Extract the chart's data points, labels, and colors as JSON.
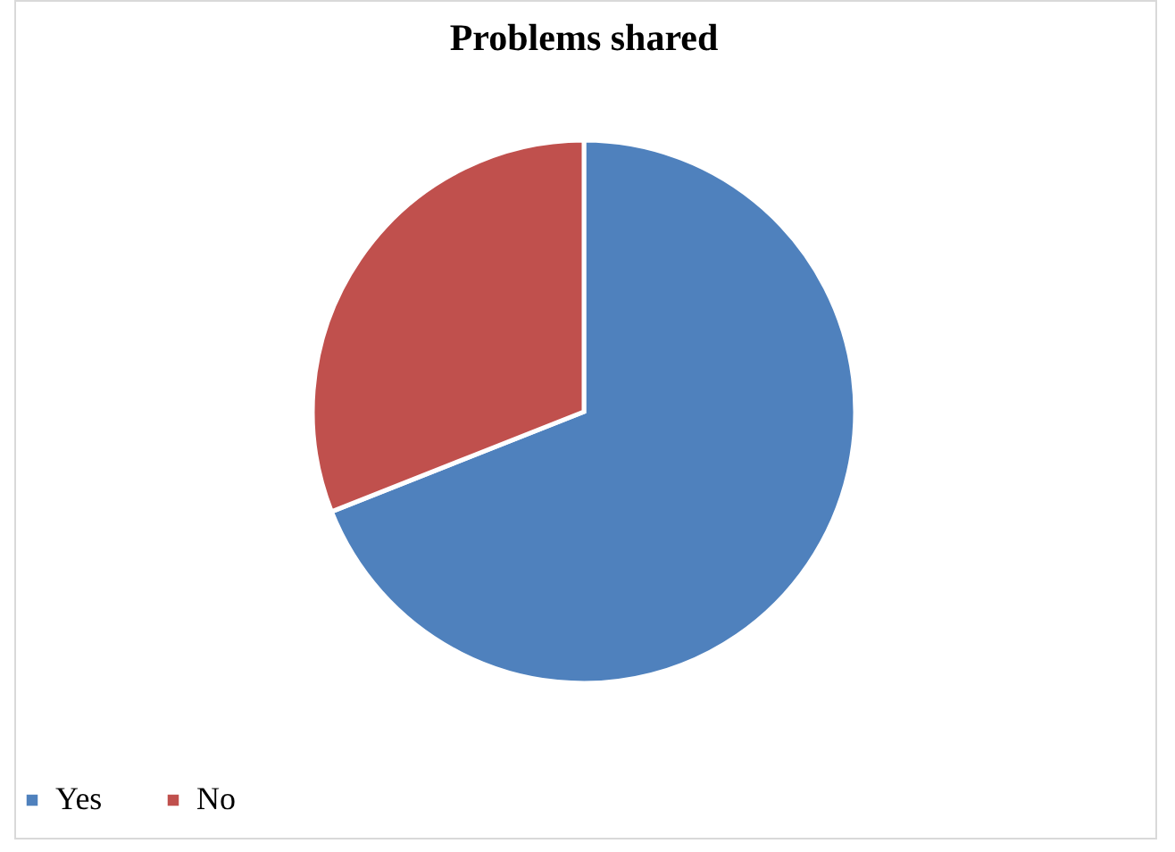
{
  "chart_data": {
    "type": "pie",
    "title": "Problems shared",
    "categories": [
      "Yes",
      "No"
    ],
    "values": [
      69,
      31
    ],
    "colors": [
      "#4f81bd",
      "#c0504d"
    ],
    "legend": "bottom"
  }
}
